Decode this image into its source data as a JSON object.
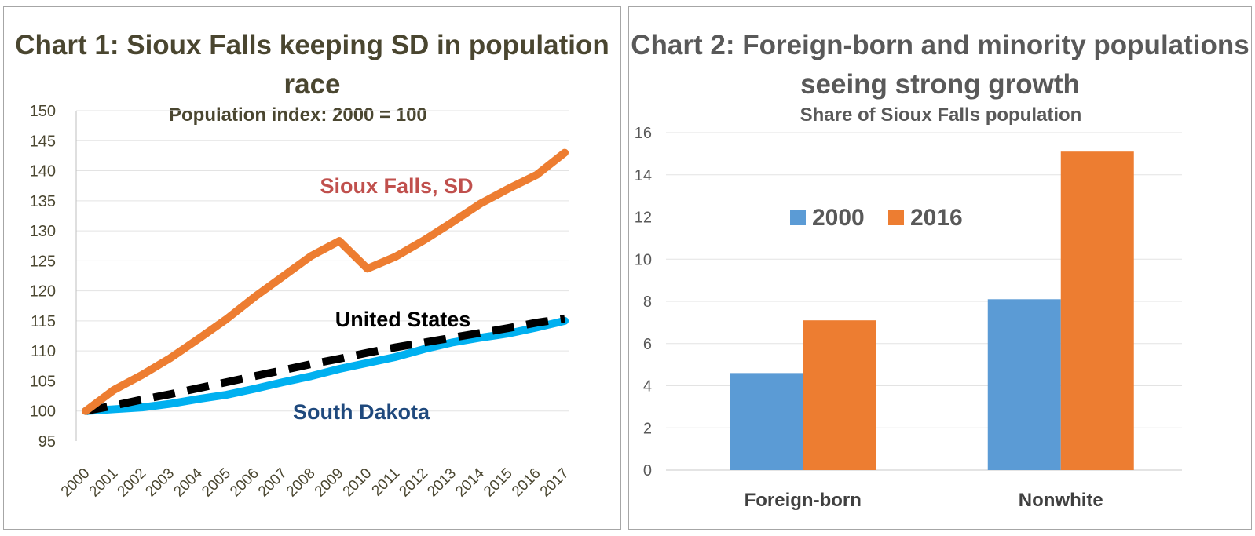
{
  "chart_data": [
    {
      "type": "line",
      "title": "Chart 1: Sioux Falls keeping SD in population race",
      "subtitle": "Population index: 2000 = 100",
      "x": [
        "2000",
        "2001",
        "2002",
        "2003",
        "2004",
        "2005",
        "2006",
        "2007",
        "2008",
        "2009",
        "2010",
        "2011",
        "2012",
        "2013",
        "2014",
        "2015",
        "2016",
        "2017"
      ],
      "ylim": [
        95,
        150
      ],
      "yticks": [
        95,
        100,
        105,
        110,
        115,
        120,
        125,
        130,
        135,
        140,
        145,
        150
      ],
      "grid": true,
      "legend": "inline",
      "series": [
        {
          "name": "Sioux Falls, SD",
          "color": "#ed7d31",
          "style": "solid",
          "values": [
            100,
            103.5,
            106,
            108.8,
            112,
            115.3,
            119,
            122.4,
            125.8,
            128.3,
            123.7,
            125.7,
            128.4,
            131.4,
            134.5,
            137,
            139.3,
            143
          ]
        },
        {
          "name": "United States",
          "color": "#000000",
          "style": "dashed",
          "values": [
            100,
            100.9,
            101.9,
            102.8,
            103.8,
            104.8,
            105.8,
            106.8,
            107.8,
            108.7,
            109.7,
            110.6,
            111.4,
            112.2,
            113.0,
            113.8,
            114.7,
            115.4
          ]
        },
        {
          "name": "South Dakota",
          "color": "#00b0f0",
          "style": "solid",
          "values": [
            100,
            100.3,
            100.6,
            101.2,
            102.0,
            102.7,
            103.7,
            104.8,
            105.8,
            107.0,
            108.0,
            109.0,
            110.3,
            111.4,
            112.2,
            112.9,
            113.9,
            115.0
          ]
        }
      ],
      "label_colors": {
        "Sioux Falls, SD": "#c0504d",
        "United States": "#000000",
        "South Dakota": "#1f497d"
      }
    },
    {
      "type": "bar",
      "title": "Chart 2: Foreign-born and minority populations seeing strong growth",
      "subtitle": "Share of Sioux Falls population",
      "categories": [
        "Foreign-born",
        "Nonwhite"
      ],
      "ylim": [
        0,
        16
      ],
      "yticks": [
        0,
        2,
        4,
        6,
        8,
        10,
        12,
        14,
        16
      ],
      "grid": true,
      "legend": "top-center",
      "series": [
        {
          "name": "2000",
          "color": "#5b9bd5",
          "values": [
            4.6,
            8.1
          ]
        },
        {
          "name": "2016",
          "color": "#ed7d31",
          "values": [
            7.1,
            15.1
          ]
        }
      ]
    }
  ]
}
